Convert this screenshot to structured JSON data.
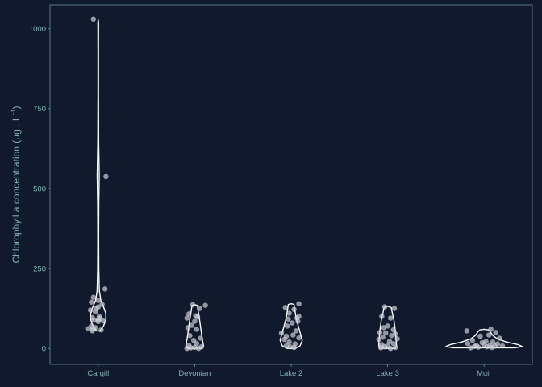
{
  "colors": {
    "background": "#111a2c",
    "panel_border": "#6a8fa0",
    "text": "#7fb4b8",
    "violin_stroke": "#ffffff",
    "point_fill": "#c9ccd4"
  },
  "chart_data": {
    "type": "violin",
    "title": "",
    "xlabel": "",
    "ylabel_main": "Chlorophyll a concentration (μg . L",
    "ylabel_sup": "−1",
    "ylabel_close": ")",
    "ylim": [
      -50,
      1075
    ],
    "yticks": [
      0,
      250,
      500,
      750,
      1000
    ],
    "categories": [
      "Cargill",
      "Devonian",
      "Lake 2",
      "Lake 3",
      "Muir"
    ],
    "grid": false,
    "violins": [
      {
        "category": "Cargill",
        "profile": [
          [
            55,
            0.18
          ],
          [
            70,
            0.6
          ],
          [
            90,
            0.85
          ],
          [
            110,
            0.85
          ],
          [
            130,
            0.6
          ],
          [
            150,
            0.3
          ],
          [
            180,
            0.13
          ],
          [
            250,
            0.06
          ],
          [
            350,
            0.05
          ],
          [
            450,
            0.06
          ],
          [
            500,
            0.09
          ],
          [
            540,
            0.12
          ],
          [
            580,
            0.09
          ],
          [
            650,
            0.05
          ],
          [
            800,
            0.03
          ],
          [
            950,
            0.03
          ],
          [
            1020,
            0.04
          ],
          [
            1028,
            0.0
          ]
        ]
      },
      {
        "category": "Devonian",
        "profile": [
          [
            0,
            0.8
          ],
          [
            8,
            1.0
          ],
          [
            30,
            0.85
          ],
          [
            60,
            0.7
          ],
          [
            90,
            0.55
          ],
          [
            120,
            0.38
          ],
          [
            135,
            0.3
          ],
          [
            137,
            0.0
          ]
        ]
      },
      {
        "category": "Lake 2",
        "profile": [
          [
            0,
            0.45
          ],
          [
            8,
            1.0
          ],
          [
            25,
            1.25
          ],
          [
            45,
            1.05
          ],
          [
            70,
            0.8
          ],
          [
            95,
            0.55
          ],
          [
            120,
            0.42
          ],
          [
            138,
            0.32
          ],
          [
            140,
            0.0
          ]
        ]
      },
      {
        "category": "Lake 3",
        "profile": [
          [
            0,
            0.9
          ],
          [
            10,
            1.0
          ],
          [
            30,
            0.95
          ],
          [
            60,
            0.85
          ],
          [
            90,
            0.7
          ],
          [
            115,
            0.5
          ],
          [
            128,
            0.4
          ],
          [
            132,
            0.0
          ]
        ]
      },
      {
        "category": "Muir",
        "profile": [
          [
            2,
            3.5
          ],
          [
            6,
            4.3
          ],
          [
            12,
            3.8
          ],
          [
            20,
            2.5
          ],
          [
            30,
            1.5
          ],
          [
            40,
            1.0
          ],
          [
            52,
            0.7
          ],
          [
            58,
            0.5
          ],
          [
            60,
            0.0
          ]
        ]
      }
    ],
    "points": [
      {
        "category": "Cargill",
        "values": [
          1030,
          538,
          186,
          160,
          150,
          145,
          138,
          130,
          125,
          120,
          115,
          100,
          96,
          94,
          90,
          88,
          86,
          84,
          70,
          65,
          62,
          60,
          58,
          55
        ],
        "jitter": [
          -0.05,
          0.08,
          0.07,
          -0.05,
          0.0,
          -0.07,
          0.04,
          0.0,
          -0.02,
          -0.08,
          -0.03,
          0.01,
          -0.06,
          0.02,
          0.0,
          -0.04,
          0.05,
          0.0,
          -0.07,
          -0.03,
          -0.1,
          -0.05,
          0.03,
          -0.06
        ]
      },
      {
        "category": "Devonian",
        "values": [
          137,
          135,
          125,
          108,
          102,
          98,
          95,
          85,
          72,
          65,
          60,
          40,
          32,
          25,
          15,
          10,
          5,
          3,
          2,
          0,
          0
        ],
        "jitter": [
          -0.02,
          0.11,
          0.05,
          -0.06,
          0.01,
          0.03,
          -0.08,
          0.0,
          -0.03,
          -0.07,
          0.02,
          -0.05,
          0.06,
          -0.01,
          0.02,
          -0.06,
          0.07,
          0.0,
          -0.04,
          -0.08,
          0.04
        ]
      },
      {
        "category": "Lake 2",
        "values": [
          140,
          128,
          122,
          110,
          100,
          95,
          92,
          85,
          80,
          70,
          55,
          48,
          42,
          38,
          33,
          28,
          20,
          14,
          8,
          5,
          3
        ],
        "jitter": [
          0.08,
          -0.06,
          0.03,
          -0.02,
          0.08,
          0.06,
          -0.03,
          0.07,
          0.01,
          -0.04,
          0.05,
          -0.1,
          0.02,
          -0.05,
          0.08,
          -0.07,
          -0.02,
          0.04,
          -0.05,
          -0.01,
          0.03
        ]
      },
      {
        "category": "Lake 3",
        "values": [
          130,
          125,
          100,
          95,
          70,
          65,
          58,
          50,
          48,
          45,
          40,
          35,
          30,
          28,
          22,
          15,
          12,
          8,
          5,
          3,
          2,
          0
        ],
        "jitter": [
          -0.03,
          0.07,
          -0.06,
          0.03,
          0.0,
          -0.04,
          0.06,
          -0.08,
          -0.02,
          0.08,
          0.04,
          -0.05,
          0.1,
          -0.09,
          0.02,
          0.06,
          -0.06,
          0.0,
          -0.03,
          0.08,
          -0.07,
          0.03
        ]
      },
      {
        "category": "Muir",
        "values": [
          60,
          55,
          50,
          42,
          38,
          32,
          25,
          22,
          20,
          18,
          15,
          14,
          12,
          10,
          9,
          8,
          7,
          6,
          5,
          4,
          3,
          2
        ],
        "jitter": [
          0.07,
          -0.18,
          0.12,
          0.05,
          -0.04,
          0.16,
          -0.12,
          0.02,
          0.09,
          -0.02,
          -0.17,
          0.14,
          0.0,
          0.06,
          -0.08,
          0.19,
          0.11,
          -0.1,
          0.03,
          -0.06,
          0.08,
          -0.14
        ]
      }
    ]
  }
}
